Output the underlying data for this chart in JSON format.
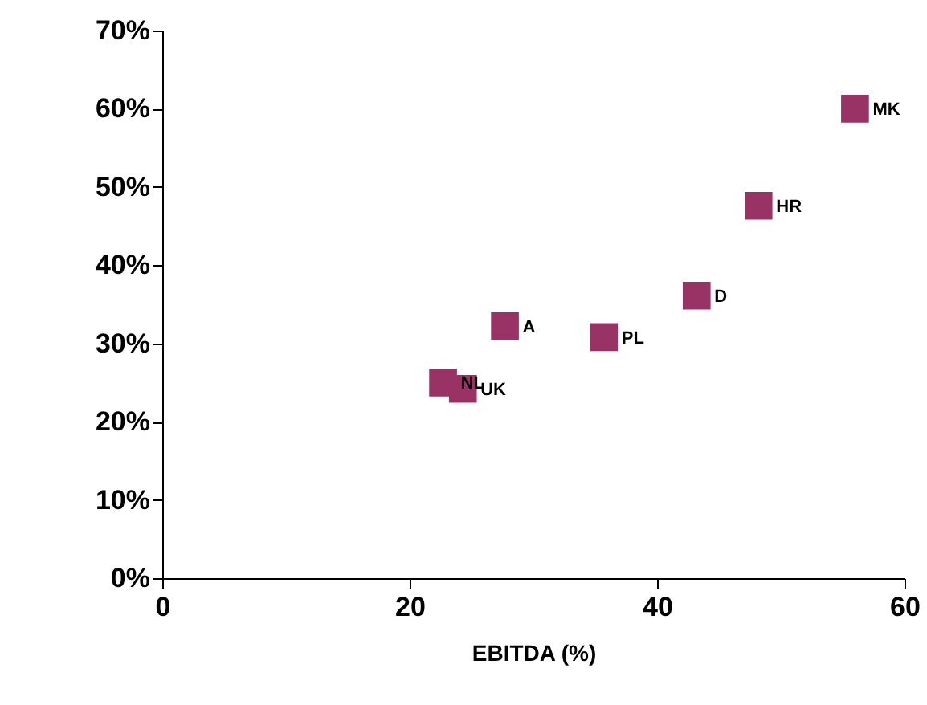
{
  "chart_data": {
    "type": "scatter",
    "xlabel": "EBITDA (%)",
    "x": [
      22.7,
      24.3,
      27.7,
      35.7,
      43.2,
      48.2,
      56.0
    ],
    "series": [
      {
        "color": "#993366",
        "values": [
          25.0,
          24.2,
          32.2,
          30.8,
          36.1,
          47.6,
          60.0
        ]
      }
    ],
    "annotations": [
      {
        "text": "NL",
        "x": 22.7,
        "y": 25.0
      },
      {
        "text": "UK",
        "x": 24.3,
        "y": 24.2
      },
      {
        "text": "A",
        "x": 27.7,
        "y": 32.2
      },
      {
        "text": "PL",
        "x": 35.7,
        "y": 30.8
      },
      {
        "text": "D",
        "x": 43.2,
        "y": 36.1
      },
      {
        "text": "HR",
        "x": 48.2,
        "y": 47.6
      },
      {
        "text": "MK",
        "x": 56.0,
        "y": 60.0
      }
    ],
    "xlim": [
      0,
      60
    ],
    "xticks": [
      0,
      20,
      40,
      60
    ],
    "ylim": [
      0,
      70
    ],
    "yticks": [
      {
        "value": 0,
        "label": "0%"
      },
      {
        "value": 10,
        "label": "10%"
      },
      {
        "value": 20,
        "label": "20%"
      },
      {
        "value": 30,
        "label": "30%"
      },
      {
        "value": 40,
        "label": "40%"
      },
      {
        "value": 50,
        "label": "50%"
      },
      {
        "value": 60,
        "label": "60%"
      },
      {
        "value": 70,
        "label": "70%"
      }
    ],
    "marker": "square",
    "grid": false
  }
}
